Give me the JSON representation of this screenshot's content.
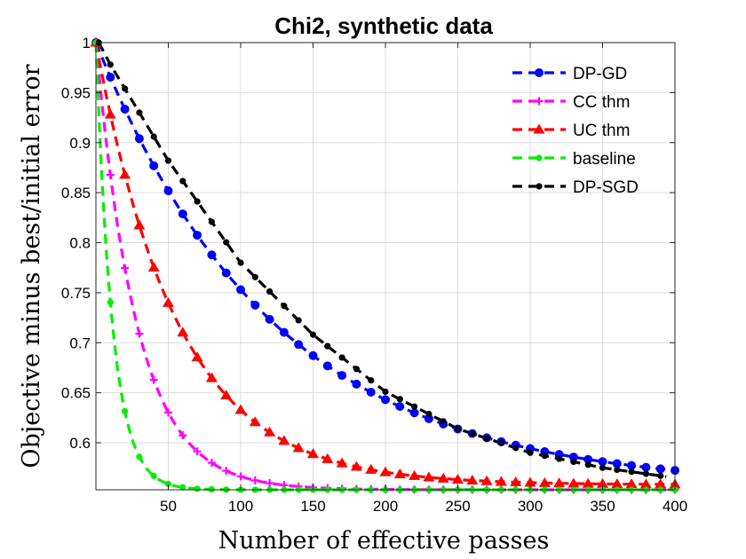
{
  "chart_data": {
    "type": "line",
    "title": "Chi2, synthetic data",
    "xlabel": "Number of effective passes",
    "ylabel": "Objective minus best/initial error",
    "xlim": [
      0,
      400
    ],
    "ylim": [
      0.553,
      1.0
    ],
    "xticks": [
      50,
      100,
      150,
      200,
      250,
      300,
      350,
      400
    ],
    "yticks": [
      0.6,
      0.65,
      0.7,
      0.75,
      0.8,
      0.85,
      0.9,
      0.95,
      1
    ],
    "grid": true,
    "legend_position": "top-right",
    "series": [
      {
        "name": "DP-GD",
        "color": "#0000ff",
        "marker": "circle",
        "model": {
          "asymptote": 0.555,
          "tau": 123.5
        },
        "x_start": 0,
        "x_end": 400,
        "x_step": 10
      },
      {
        "name": "CC thm",
        "color": "#ff00ff",
        "marker": "plus",
        "model": {
          "asymptote": 0.553,
          "tau": 28.5
        },
        "x_start": 0,
        "x_end": 400,
        "x_step": 10
      },
      {
        "name": "UC thm",
        "color": "#ff0000",
        "marker": "triangle",
        "model": {
          "asymptote": 0.558,
          "tau": 56.3
        },
        "x_start": 0,
        "x_end": 400,
        "x_step": 10
      },
      {
        "name": "baseline",
        "color": "#00ee00",
        "marker": "dot",
        "model": {
          "asymptote": 0.553,
          "tau": 11.5
        },
        "x_start": 0,
        "x_end": 400,
        "x_step": 10
      },
      {
        "name": "DP-SGD",
        "color": "#000000",
        "marker": "dot",
        "model": {
          "asymptote": 0.553,
          "tau": 87
        },
        "x_start": 0,
        "x_end": 395,
        "x_step": 10,
        "points": [
          [
            2,
            1.0
          ],
          [
            10,
            0.978
          ],
          [
            50,
            0.882
          ],
          [
            100,
            0.78
          ],
          [
            150,
            0.708
          ],
          [
            200,
            0.651
          ],
          [
            250,
            0.614
          ],
          [
            300,
            0.59
          ],
          [
            350,
            0.575
          ],
          [
            395,
            0.566
          ]
        ]
      }
    ]
  }
}
